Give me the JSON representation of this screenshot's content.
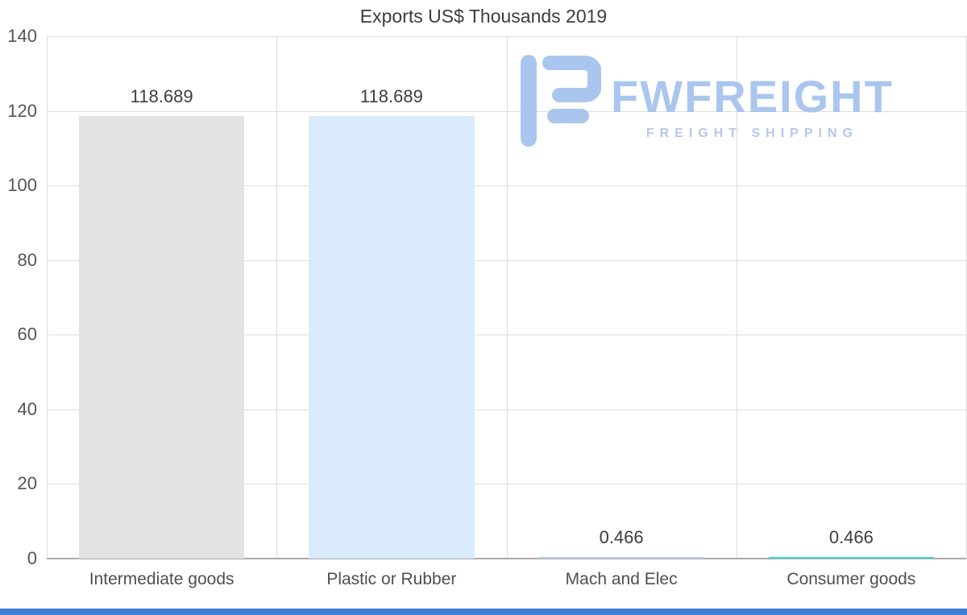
{
  "chart_data": {
    "type": "bar",
    "title": "Exports US$ Thousands 2019",
    "categories": [
      "Intermediate goods",
      "Plastic or Rubber",
      "Mach and Elec",
      "Consumer goods"
    ],
    "values": [
      118.689,
      118.689,
      0.466,
      0.466
    ],
    "value_labels": [
      "118.689",
      "118.689",
      "0.466",
      "0.466"
    ],
    "bar_colors": [
      "#e3e3e3",
      "#d9eafb",
      "#bfcfdf",
      "#3edcd2"
    ],
    "ylim": [
      0,
      140
    ],
    "yticks": [
      0,
      20,
      40,
      60,
      80,
      100,
      120,
      140
    ],
    "grid": true,
    "legend": false,
    "xlabel": "",
    "ylabel": ""
  },
  "watermark": {
    "brand": "FWFREIGHT",
    "tagline": "FREIGHT SHIPPING",
    "color": "#a6c3ee"
  },
  "page": {
    "background": "#ffffff",
    "footer_bar_color": "#3f7fd6"
  }
}
